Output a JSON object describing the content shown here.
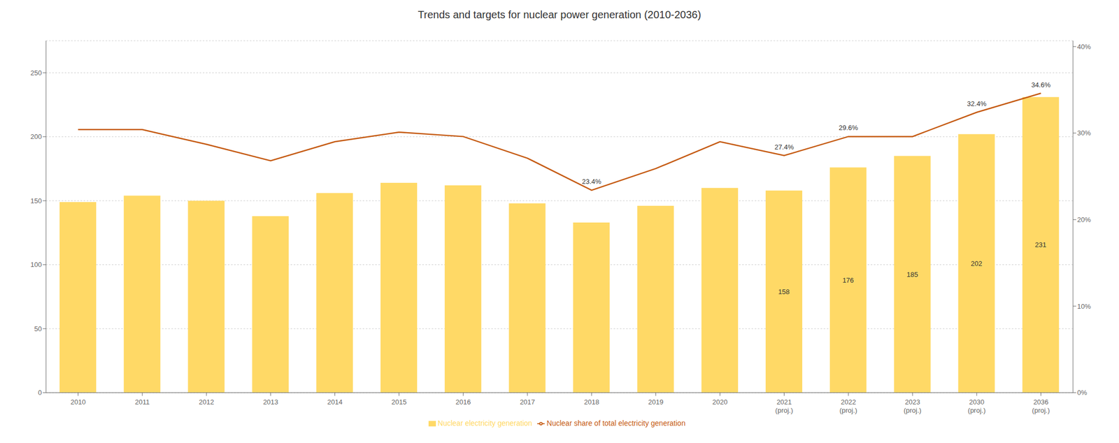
{
  "chart_data": {
    "type": "combo",
    "title": "Trends and targets for nuclear power generation (2010-2036)",
    "categories": [
      "2010",
      "2011",
      "2012",
      "2013",
      "2014",
      "2015",
      "2016",
      "2017",
      "2018",
      "2019",
      "2020",
      "2021\n(proj.)",
      "2022\n(proj.)",
      "2023\n(proj.)",
      "2030\n(proj.)",
      "2036\n(proj.)"
    ],
    "series": [
      {
        "name": "Nuclear electricity generation",
        "type": "bar",
        "color": "#FFD966",
        "values": [
          149,
          154,
          150,
          138,
          156,
          164,
          162,
          148,
          133,
          146,
          160,
          158,
          176,
          185,
          202,
          231
        ],
        "value_labels": [
          null,
          null,
          null,
          null,
          null,
          null,
          null,
          null,
          null,
          null,
          null,
          "158",
          "176",
          "185",
          "202",
          "231"
        ]
      },
      {
        "name": "Nuclear share of total electricity generation",
        "type": "line",
        "axis": "y2",
        "color": "#C55A11",
        "values": [
          30.4,
          30.4,
          28.7,
          26.8,
          29.0,
          30.1,
          29.6,
          27.1,
          23.4,
          25.9,
          29.0,
          27.4,
          29.6,
          29.6,
          32.4,
          34.6
        ],
        "value_labels": [
          null,
          null,
          null,
          null,
          null,
          null,
          null,
          null,
          "23.4%",
          null,
          null,
          "27.4%",
          "29.6%",
          null,
          "32.4%",
          "34.6%"
        ]
      }
    ],
    "ylim": [
      0,
      275
    ],
    "yticks": [
      0,
      50,
      100,
      150,
      200,
      250
    ],
    "y2lim": [
      0,
      40.67
    ],
    "y2ticks": [
      {
        "value": 0,
        "label": "0%"
      },
      {
        "value": 10,
        "label": "10%"
      },
      {
        "value": 20,
        "label": "20%"
      },
      {
        "value": 30,
        "label": "30%"
      },
      {
        "value": 40,
        "label": "40%"
      }
    ],
    "grid": true,
    "legend": "bottom"
  }
}
